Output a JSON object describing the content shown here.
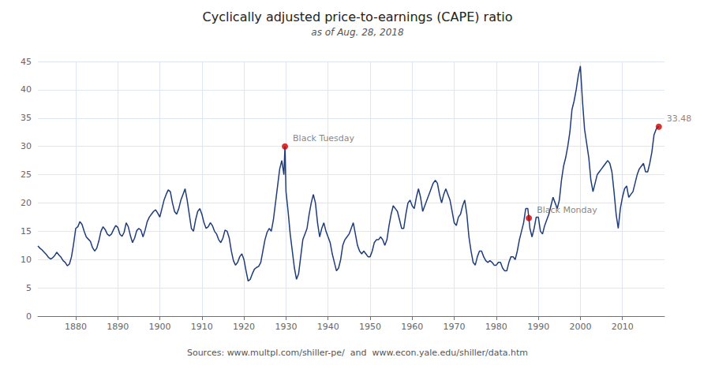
{
  "chart_data": {
    "type": "line",
    "title": "Cyclically adjusted price-to-earnings (CAPE) ratio",
    "subtitle": "as of Aug. 28, 2018",
    "source": "Sources: www.multpl.com/shiller-pe/  and  www.econ.yale.edu/shiller/data.htm",
    "color": "#1f3d7a",
    "grid": true,
    "xlim": [
      1871,
      2020
    ],
    "xticks": [
      1880,
      1890,
      1900,
      1910,
      1920,
      1930,
      1940,
      1950,
      1960,
      1970,
      1980,
      1990,
      2000,
      2010
    ],
    "ylim": [
      0,
      45
    ],
    "yticks": [
      0,
      5,
      10,
      15,
      20,
      25,
      30,
      35,
      40,
      45
    ],
    "annotations": [
      {
        "text": "Black Tuesday",
        "x": 1929.75,
        "y": 29.98,
        "color": "#cc0000"
      },
      {
        "text": "Black Monday",
        "x": 1987.75,
        "y": 17.33,
        "color": "#cc0000"
      },
      {
        "text": "33.48",
        "x": 2018.65,
        "y": 33.48,
        "color": "#cc0000"
      }
    ],
    "x": [
      1871,
      1871.5,
      1872,
      1872.5,
      1873,
      1873.5,
      1874,
      1874.5,
      1875,
      1875.5,
      1876,
      1876.5,
      1877,
      1877.5,
      1878,
      1878.5,
      1879,
      1879.5,
      1880,
      1880.5,
      1881,
      1881.5,
      1882,
      1882.5,
      1883,
      1883.5,
      1884,
      1884.5,
      1885,
      1885.5,
      1886,
      1886.5,
      1887,
      1887.5,
      1888,
      1888.5,
      1889,
      1889.5,
      1890,
      1890.5,
      1891,
      1891.5,
      1892,
      1892.5,
      1893,
      1893.5,
      1894,
      1894.5,
      1895,
      1895.5,
      1896,
      1896.5,
      1897,
      1897.5,
      1898,
      1898.5,
      1899,
      1899.5,
      1900,
      1900.5,
      1901,
      1901.5,
      1902,
      1902.5,
      1903,
      1903.5,
      1904,
      1904.5,
      1905,
      1905.5,
      1906,
      1906.5,
      1907,
      1907.5,
      1908,
      1908.5,
      1909,
      1909.5,
      1910,
      1910.5,
      1911,
      1911.5,
      1912,
      1912.5,
      1913,
      1913.5,
      1914,
      1914.5,
      1915,
      1915.5,
      1916,
      1916.5,
      1917,
      1917.5,
      1918,
      1918.5,
      1919,
      1919.5,
      1920,
      1920.5,
      1921,
      1921.5,
      1922,
      1922.5,
      1923,
      1923.5,
      1924,
      1924.5,
      1925,
      1925.5,
      1926,
      1926.5,
      1927,
      1927.5,
      1928,
      1928.5,
      1929,
      1929.5,
      1929.75,
      1930,
      1930.5,
      1931,
      1931.5,
      1932,
      1932.5,
      1933,
      1933.5,
      1934,
      1934.5,
      1935,
      1935.5,
      1936,
      1936.5,
      1937,
      1937.5,
      1938,
      1938.5,
      1939,
      1939.5,
      1940,
      1940.5,
      1941,
      1941.5,
      1942,
      1942.5,
      1943,
      1943.5,
      1944,
      1944.5,
      1945,
      1945.5,
      1946,
      1946.5,
      1947,
      1947.5,
      1948,
      1948.5,
      1949,
      1949.5,
      1950,
      1950.5,
      1951,
      1951.5,
      1952,
      1952.5,
      1953,
      1953.5,
      1954,
      1954.5,
      1955,
      1955.5,
      1956,
      1956.5,
      1957,
      1957.5,
      1958,
      1958.5,
      1959,
      1959.5,
      1960,
      1960.5,
      1961,
      1961.5,
      1962,
      1962.5,
      1963,
      1963.5,
      1964,
      1964.5,
      1965,
      1965.5,
      1966,
      1966.5,
      1967,
      1967.5,
      1968,
      1968.5,
      1969,
      1969.5,
      1970,
      1970.5,
      1971,
      1971.5,
      1972,
      1972.5,
      1973,
      1973.5,
      1974,
      1974.5,
      1975,
      1975.5,
      1976,
      1976.5,
      1977,
      1977.5,
      1978,
      1978.5,
      1979,
      1979.5,
      1980,
      1980.5,
      1981,
      1981.5,
      1982,
      1982.5,
      1983,
      1983.5,
      1984,
      1984.5,
      1985,
      1985.5,
      1986,
      1986.5,
      1987,
      1987.5,
      1987.75,
      1988,
      1988.5,
      1989,
      1989.5,
      1990,
      1990.5,
      1991,
      1991.5,
      1992,
      1992.5,
      1993,
      1993.5,
      1994,
      1994.5,
      1995,
      1995.5,
      1996,
      1996.5,
      1997,
      1997.5,
      1998,
      1998.5,
      1999,
      1999.5,
      2000,
      2000.5,
      2001,
      2001.5,
      2002,
      2002.5,
      2003,
      2003.5,
      2004,
      2004.5,
      2005,
      2005.5,
      2006,
      2006.5,
      2007,
      2007.5,
      2008,
      2008.5,
      2009,
      2009.5,
      2010,
      2010.5,
      2011,
      2011.5,
      2012,
      2012.5,
      2013,
      2013.5,
      2014,
      2014.5,
      2015,
      2015.5,
      2016,
      2016.5,
      2017,
      2017.5,
      2018,
      2018.5,
      2018.65
    ],
    "values": [
      12.4,
      12.0,
      11.7,
      11.3,
      10.9,
      10.4,
      10.1,
      10.3,
      10.7,
      11.3,
      10.8,
      10.4,
      9.8,
      9.5,
      8.9,
      9.2,
      10.5,
      12.8,
      15.5,
      15.8,
      16.7,
      16.2,
      15.0,
      14.0,
      13.6,
      13.2,
      12.1,
      11.5,
      12.0,
      13.3,
      15.0,
      15.8,
      15.3,
      14.5,
      14.2,
      14.5,
      15.3,
      16.0,
      15.7,
      14.5,
      14.1,
      14.8,
      16.5,
      15.8,
      14.2,
      13.0,
      13.8,
      15.1,
      15.5,
      15.2,
      14.0,
      15.2,
      16.7,
      17.5,
      18.0,
      18.5,
      18.8,
      18.2,
      17.5,
      19.0,
      20.5,
      21.5,
      22.3,
      22.0,
      20.0,
      18.5,
      18.0,
      19.0,
      20.5,
      21.5,
      22.5,
      20.5,
      18.0,
      15.5,
      15.0,
      17.0,
      18.5,
      19.0,
      18.0,
      16.5,
      15.5,
      15.8,
      16.5,
      16.0,
      15.0,
      14.5,
      13.5,
      13.0,
      13.8,
      15.2,
      15.0,
      13.8,
      11.5,
      9.8,
      9.0,
      9.5,
      10.5,
      11.0,
      10.0,
      8.0,
      6.2,
      6.5,
      7.5,
      8.3,
      8.6,
      8.8,
      9.5,
      11.5,
      13.5,
      14.8,
      15.5,
      15.0,
      17.0,
      20.0,
      23.0,
      26.0,
      27.5,
      25.0,
      29.98,
      22.0,
      18.5,
      14.5,
      11.5,
      8.5,
      6.5,
      7.5,
      10.5,
      13.5,
      14.5,
      15.5,
      18.0,
      20.0,
      21.5,
      20.0,
      16.5,
      14.0,
      15.5,
      16.5,
      15.0,
      14.0,
      13.0,
      11.0,
      9.5,
      8.0,
      8.5,
      10.0,
      12.5,
      13.5,
      14.0,
      14.5,
      15.5,
      16.5,
      14.5,
      12.5,
      11.5,
      11.0,
      11.5,
      11.0,
      10.5,
      10.5,
      11.5,
      13.0,
      13.5,
      13.5,
      14.0,
      13.5,
      12.5,
      13.5,
      16.0,
      18.0,
      19.5,
      19.0,
      18.5,
      17.0,
      15.5,
      15.5,
      18.0,
      20.0,
      20.5,
      19.5,
      19.0,
      21.0,
      22.5,
      21.0,
      18.5,
      19.5,
      20.5,
      21.5,
      22.5,
      23.5,
      24.0,
      23.5,
      21.5,
      20.0,
      21.5,
      22.5,
      21.5,
      20.5,
      18.5,
      16.5,
      16.0,
      17.5,
      18.0,
      19.5,
      20.5,
      18.0,
      14.0,
      11.5,
      9.5,
      9.0,
      10.5,
      11.5,
      11.5,
      10.5,
      9.8,
      9.5,
      9.8,
      9.5,
      9.0,
      9.0,
      9.5,
      9.5,
      8.5,
      8.0,
      8.0,
      9.5,
      10.5,
      10.5,
      10.0,
      11.5,
      13.5,
      15.0,
      16.5,
      19.0,
      19.0,
      17.33,
      15.5,
      14.0,
      15.5,
      17.5,
      17.5,
      15.0,
      14.5,
      16.0,
      17.0,
      18.0,
      19.5,
      21.0,
      20.0,
      19.0,
      20.5,
      24.0,
      26.5,
      28.0,
      30.0,
      32.5,
      36.5,
      38.0,
      40.0,
      42.5,
      44.2,
      38.0,
      33.0,
      30.5,
      28.0,
      24.0,
      22.0,
      23.5,
      25.0,
      25.5,
      26.0,
      26.5,
      27.0,
      27.5,
      27.0,
      25.5,
      22.0,
      18.0,
      15.5,
      19.0,
      21.0,
      22.5,
      23.0,
      21.0,
      21.5,
      22.0,
      23.5,
      25.0,
      26.0,
      26.5,
      27.0,
      25.5,
      25.5,
      27.0,
      29.0,
      32.0,
      33.0,
      33.48,
      33.48
    ]
  }
}
